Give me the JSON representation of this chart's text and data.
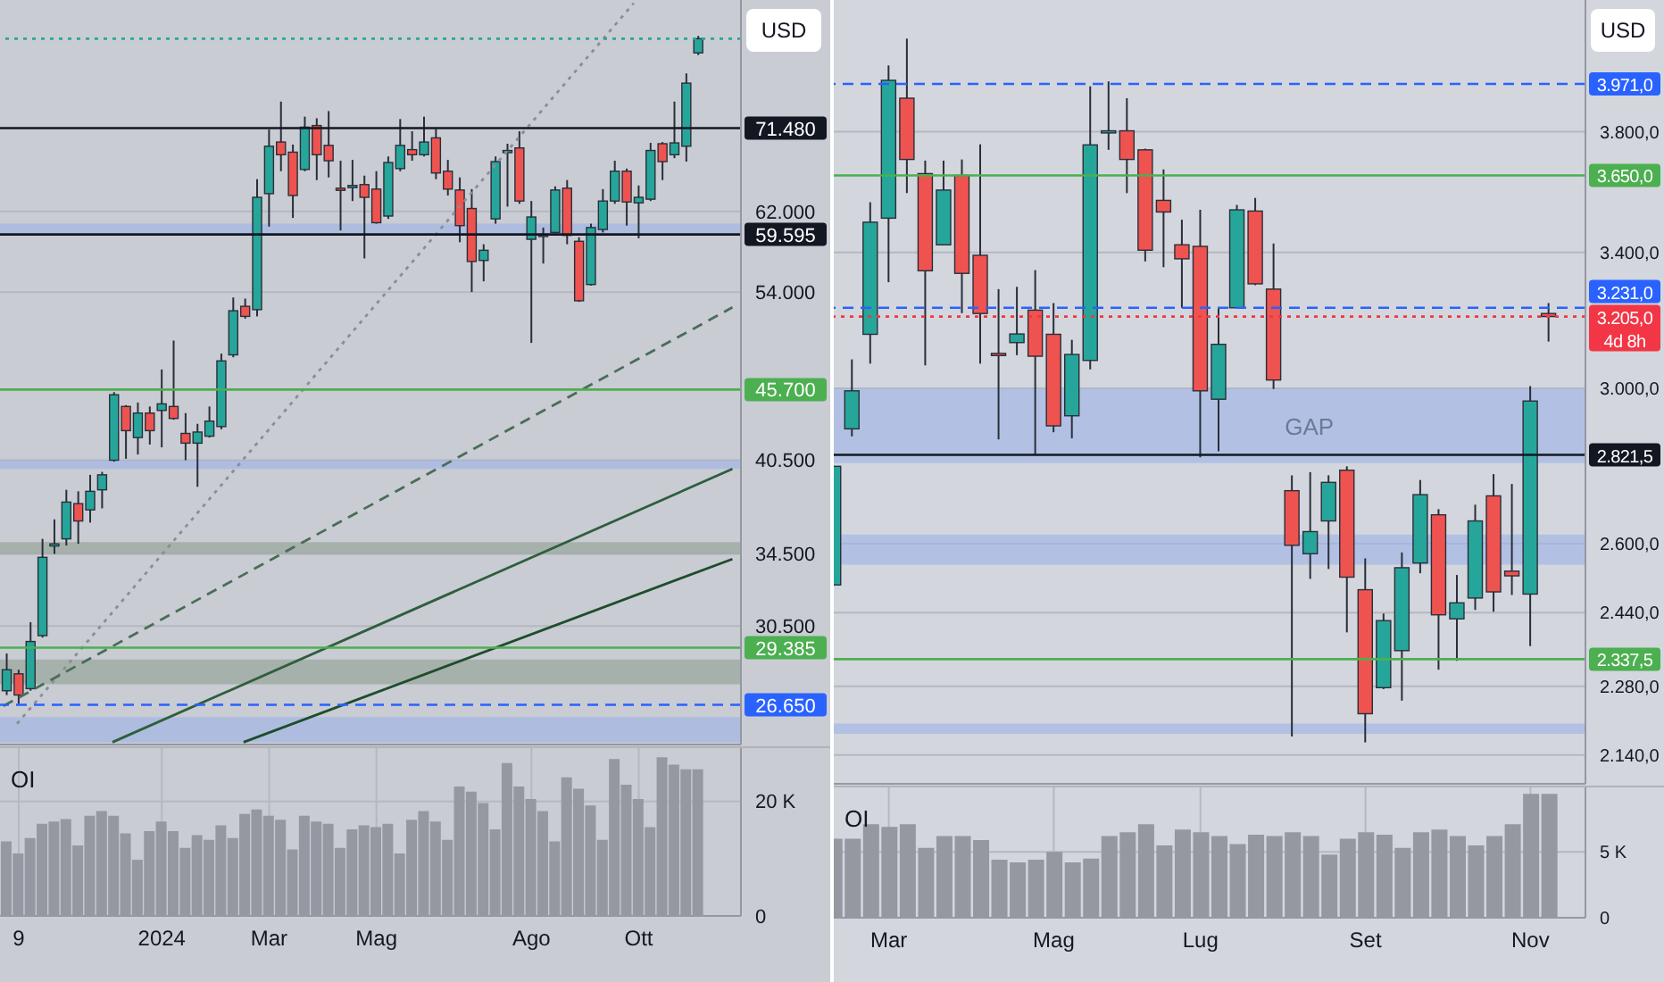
{
  "chart_data": [
    {
      "type": "candlestick",
      "x": [
        "2023-10-02",
        "2023-10-09",
        "2023-10-16",
        "2023-10-23",
        "2023-10-30",
        "2023-11-06",
        "2023-11-13",
        "2023-11-20",
        "2023-11-27",
        "2023-12-04",
        "2023-12-11",
        "2023-12-18",
        "2023-12-25",
        "2024-01-01",
        "2024-01-08",
        "2024-01-15",
        "2024-01-22",
        "2024-01-29",
        "2024-02-05",
        "2024-02-12",
        "2024-02-19",
        "2024-02-26",
        "2024-03-04",
        "2024-03-11",
        "2024-03-18",
        "2024-03-25",
        "2024-04-01",
        "2024-04-08",
        "2024-04-15",
        "2024-04-22",
        "2024-04-29",
        "2024-05-06",
        "2024-05-13",
        "2024-05-20",
        "2024-05-27",
        "2024-06-03",
        "2024-06-10",
        "2024-06-17",
        "2024-06-24",
        "2024-07-01",
        "2024-07-08",
        "2024-07-15",
        "2024-07-22",
        "2024-07-29",
        "2024-08-05",
        "2024-08-12",
        "2024-08-19",
        "2024-08-26",
        "2024-09-02",
        "2024-09-09",
        "2024-09-16",
        "2024-09-23",
        "2024-09-30",
        "2024-10-07",
        "2024-10-14",
        "2024-10-21",
        "2024-10-28",
        "2024-11-04",
        "2024-11-11"
      ],
      "ohlc": [
        [
          27300,
          29100,
          27100,
          28300
        ],
        [
          28100,
          28300,
          26700,
          27100
        ],
        [
          27400,
          30700,
          27300,
          29700
        ],
        [
          30000,
          35400,
          29900,
          34300
        ],
        [
          35000,
          36600,
          34500,
          35100
        ],
        [
          35400,
          38500,
          35000,
          37700
        ],
        [
          37600,
          38400,
          35100,
          36500
        ],
        [
          37200,
          39500,
          36400,
          38400
        ],
        [
          38500,
          39700,
          37300,
          39500
        ],
        [
          40500,
          45500,
          40400,
          45300
        ],
        [
          44400,
          44500,
          40600,
          42600
        ],
        [
          42100,
          44700,
          40900,
          43900
        ],
        [
          43900,
          44400,
          41600,
          42600
        ],
        [
          44100,
          47300,
          41400,
          44600
        ],
        [
          44400,
          49700,
          43400,
          43500
        ],
        [
          42400,
          43900,
          40500,
          41700
        ],
        [
          41700,
          43100,
          38700,
          42500
        ],
        [
          42200,
          44400,
          42100,
          43300
        ],
        [
          42900,
          48600,
          42700,
          48000
        ],
        [
          48500,
          53500,
          48300,
          52300
        ],
        [
          52700,
          53400,
          51600,
          51800
        ],
        [
          52400,
          65500,
          51800,
          63500
        ],
        [
          63900,
          71300,
          60400,
          69300
        ],
        [
          69800,
          74800,
          66400,
          68300
        ],
        [
          68600,
          69500,
          61300,
          63700
        ],
        [
          66600,
          72900,
          66400,
          71600
        ],
        [
          71800,
          72700,
          65400,
          68300
        ],
        [
          69400,
          73600,
          65700,
          67600
        ],
        [
          64500,
          67600,
          60000,
          64300
        ],
        [
          64700,
          67700,
          63100,
          64800
        ],
        [
          64900,
          65900,
          57200,
          63500
        ],
        [
          64400,
          66400,
          60700,
          60800
        ],
        [
          61500,
          68100,
          61200,
          67400
        ],
        [
          66700,
          72600,
          66400,
          69400
        ],
        [
          68900,
          71100,
          67600,
          68300
        ],
        [
          68300,
          72900,
          68100,
          69800
        ],
        [
          70300,
          71400,
          65500,
          66200
        ],
        [
          66400,
          67700,
          63700,
          64400
        ],
        [
          64300,
          65700,
          58800,
          60500
        ],
        [
          62300,
          64400,
          54000,
          56900
        ],
        [
          57000,
          58600,
          55000,
          58000
        ],
        [
          61200,
          68100,
          60700,
          67500
        ],
        [
          68600,
          69600,
          62500,
          68800
        ],
        [
          69100,
          71100,
          62800,
          63100
        ],
        [
          59100,
          63100,
          49500,
          61400
        ],
        [
          59400,
          60300,
          56700,
          59600
        ],
        [
          59800,
          64700,
          59700,
          64300
        ],
        [
          64500,
          65400,
          58600,
          59500
        ],
        [
          58900,
          59300,
          53100,
          53200
        ],
        [
          54700,
          60700,
          54600,
          60300
        ],
        [
          60100,
          64400,
          59800,
          63100
        ],
        [
          63100,
          67600,
          62800,
          66400
        ],
        [
          66400,
          66700,
          60500,
          63000
        ],
        [
          62900,
          64800,
          59200,
          63500
        ],
        [
          63300,
          69700,
          63100,
          68800
        ],
        [
          69600,
          69800,
          65400,
          67500
        ],
        [
          68300,
          74800,
          67900,
          69700
        ],
        [
          69300,
          78500,
          67500,
          77200
        ],
        [
          81300,
          83700,
          81000,
          83300
        ]
      ],
      "colors": [
        "#26a69a",
        "#ef5350",
        "#26a69a",
        "#26a69a",
        "#26a69a",
        "#26a69a",
        "#ef5350",
        "#26a69a",
        "#26a69a",
        "#26a69a",
        "#ef5350",
        "#26a69a",
        "#ef5350",
        "#26a69a",
        "#ef5350",
        "#ef5350",
        "#26a69a",
        "#26a69a",
        "#26a69a",
        "#26a69a",
        "#ef5350",
        "#26a69a",
        "#26a69a",
        "#ef5350",
        "#ef5350",
        "#26a69a",
        "#ef5350",
        "#ef5350",
        "#ef5350",
        "#26a69a",
        "#ef5350",
        "#ef5350",
        "#26a69a",
        "#26a69a",
        "#ef5350",
        "#26a69a",
        "#ef5350",
        "#ef5350",
        "#ef5350",
        "#ef5350",
        "#26a69a",
        "#26a69a",
        "#26a69a",
        "#ef5350",
        "#26a69a",
        "#26a69a",
        "#26a69a",
        "#ef5350",
        "#ef5350",
        "#26a69a",
        "#26a69a",
        "#26a69a",
        "#ef5350",
        "#26a69a",
        "#26a69a",
        "#ef5350",
        "#26a69a",
        "#26a69a",
        "#26a69a"
      ],
      "series": [
        {
          "type": "line",
          "x": [
            "2023-10-08",
            "2024-10-04"
          ],
          "values": [
            25800,
            88500
          ],
          "color": "#8a8d96",
          "line_style": "dotted"
        },
        {
          "type": "line",
          "x": [
            "2023-09-30",
            "2024-12-01"
          ],
          "values": [
            26600,
            52600
          ],
          "color": "#4a6d58",
          "line_style": "dashed"
        },
        {
          "type": "line",
          "x": [
            "2023-12-03",
            "2024-12-01"
          ],
          "values": [
            25000,
            39900
          ],
          "color": "#2e5e3e",
          "line_style": "solid"
        },
        {
          "type": "line",
          "x": [
            "2024-02-18",
            "2024-12-01"
          ],
          "values": [
            25000,
            34200
          ],
          "color": "#1e4d2b",
          "line_style": "solid"
        }
      ],
      "xlim": [
        "2023-09-28",
        "2024-12-06"
      ],
      "xticks": [
        {
          "value": "2023-10-09",
          "label": null
        },
        {
          "value": "2024-01-01",
          "label": null
        },
        {
          "value": "2024-03-04",
          "label": null
        },
        {
          "value": "2024-05-06",
          "label": null
        },
        {
          "value": "2024-08-05",
          "label": null
        },
        {
          "value": "2024-10-07",
          "label": null
        }
      ],
      "ylim": [
        24900,
        89000
      ],
      "yticks": [
        {
          "value": 30500,
          "label": "30.500"
        },
        {
          "value": 34500,
          "label": "34.500"
        },
        {
          "value": 40500,
          "label": "40.500"
        },
        {
          "value": 54000,
          "label": "54.000"
        },
        {
          "value": 62000,
          "label": "62.000"
        }
      ],
      "log": true,
      "grid": true,
      "tick_labels": "y",
      "ref_lines": [
        {
          "axis": "y",
          "value": 83300,
          "color": "#26a69a",
          "line_style": "dotted"
        },
        {
          "axis": "y",
          "value": 71480,
          "label": "71.480",
          "color": "#131722"
        },
        {
          "axis": "y",
          "value": 59595,
          "label": "59.595",
          "color": "#131722"
        },
        {
          "axis": "y",
          "value": 45700,
          "label": "45.700",
          "color": "#4caf50"
        },
        {
          "axis": "y",
          "value": 29385,
          "label": "29.385",
          "color": "#4caf50"
        },
        {
          "axis": "y",
          "value": 26650,
          "label": "26.650",
          "color": "#2962ff",
          "line_style": "dashed"
        }
      ],
      "bands": [
        {
          "axis": "y",
          "from": 25000,
          "to": 26100,
          "color": "#9db3e8"
        },
        {
          "axis": "y",
          "from": 27600,
          "to": 28800,
          "color": "#8f9e92"
        },
        {
          "axis": "y",
          "from": 34500,
          "to": 35200,
          "color": "#8f9e92"
        },
        {
          "axis": "y",
          "from": 39900,
          "to": 40500,
          "color": "#9db3e8"
        },
        {
          "axis": "y",
          "from": 59600,
          "to": 60700,
          "color": "#9db3e8"
        }
      ],
      "annotations": [
        "USD"
      ]
    },
    {
      "type": "bar",
      "title": "OI",
      "x": [
        "2023-10-02",
        "2023-10-09",
        "2023-10-16",
        "2023-10-23",
        "2023-10-30",
        "2023-11-06",
        "2023-11-13",
        "2023-11-20",
        "2023-11-27",
        "2023-12-04",
        "2023-12-11",
        "2023-12-18",
        "2023-12-25",
        "2024-01-01",
        "2024-01-08",
        "2024-01-15",
        "2024-01-22",
        "2024-01-29",
        "2024-02-05",
        "2024-02-12",
        "2024-02-19",
        "2024-02-26",
        "2024-03-04",
        "2024-03-11",
        "2024-03-18",
        "2024-03-25",
        "2024-04-01",
        "2024-04-08",
        "2024-04-15",
        "2024-04-22",
        "2024-04-29",
        "2024-05-06",
        "2024-05-13",
        "2024-05-20",
        "2024-05-27",
        "2024-06-03",
        "2024-06-10",
        "2024-06-17",
        "2024-06-24",
        "2024-07-01",
        "2024-07-08",
        "2024-07-15",
        "2024-07-22",
        "2024-07-29",
        "2024-08-05",
        "2024-08-12",
        "2024-08-19",
        "2024-08-26",
        "2024-09-02",
        "2024-09-09",
        "2024-09-16",
        "2024-09-23",
        "2024-09-30",
        "2024-10-07",
        "2024-10-14",
        "2024-10-21",
        "2024-10-28",
        "2024-11-04",
        "2024-11-11"
      ],
      "values": [
        13000,
        10900,
        13600,
        16100,
        16500,
        16900,
        12300,
        17500,
        18300,
        17500,
        14400,
        9800,
        14800,
        16500,
        14800,
        11900,
        14100,
        13300,
        15800,
        13600,
        17800,
        18600,
        17500,
        16800,
        11600,
        17500,
        16500,
        16100,
        11900,
        15100,
        15800,
        15500,
        16100,
        10900,
        16800,
        18300,
        16500,
        13300,
        22600,
        21700,
        19700,
        15100,
        26700,
        22600,
        20400,
        18300,
        13000,
        24200,
        22200,
        19300,
        13300,
        27400,
        22900,
        20400,
        15500,
        27700,
        26400,
        25600,
        25600
      ],
      "color": "#9598a1",
      "xlim": [
        "2023-09-28",
        "2024-12-06"
      ],
      "xticks": [
        {
          "value": "2023-10-09",
          "label": "9"
        },
        {
          "value": "2024-01-01",
          "label": "2024"
        },
        {
          "value": "2024-03-04",
          "label": "Mar"
        },
        {
          "value": "2024-05-06",
          "label": "Mag"
        },
        {
          "value": "2024-08-05",
          "label": "Ago"
        },
        {
          "value": "2024-10-07",
          "label": "Ott"
        }
      ],
      "ylim": [
        0,
        29300
      ],
      "yticks": [
        0,
        {
          "value": 20000,
          "label": "20 K"
        }
      ],
      "grid": true
    },
    {
      "type": "candlestick",
      "x": [
        "2024-02-12",
        "2024-02-19",
        "2024-02-26",
        "2024-03-04",
        "2024-03-11",
        "2024-03-18",
        "2024-03-25",
        "2024-04-01",
        "2024-04-08",
        "2024-04-15",
        "2024-04-22",
        "2024-04-29",
        "2024-05-06",
        "2024-05-13",
        "2024-05-20",
        "2024-05-27",
        "2024-06-03",
        "2024-06-10",
        "2024-06-17",
        "2024-06-24",
        "2024-07-01",
        "2024-07-08",
        "2024-07-15",
        "2024-07-22",
        "2024-07-29",
        "2024-08-05",
        "2024-08-12",
        "2024-08-19",
        "2024-08-26",
        "2024-09-02",
        "2024-09-09",
        "2024-09-16",
        "2024-09-23",
        "2024-09-30",
        "2024-10-07",
        "2024-10-14",
        "2024-10-21",
        "2024-10-28",
        "2024-11-04",
        "2024-11-11"
      ],
      "ohlc": [
        [
          2503,
          2792,
          2503,
          2792
        ],
        [
          2890,
          3081,
          2870,
          2993
        ],
        [
          3153,
          3561,
          3069,
          3496
        ],
        [
          3509,
          4039,
          3308,
          3984
        ],
        [
          3919,
          4140,
          3591,
          3704
        ],
        [
          3656,
          3700,
          3064,
          3343
        ],
        [
          3424,
          3700,
          3424,
          3601
        ],
        [
          3650,
          3704,
          3215,
          3335
        ],
        [
          3391,
          3756,
          3069,
          3214
        ],
        [
          3098,
          3287,
          2862,
          3095
        ],
        [
          3129,
          3294,
          3093,
          3154
        ],
        [
          3224,
          3345,
          2823,
          3090
        ],
        [
          3153,
          3245,
          2881,
          2898
        ],
        [
          2925,
          3137,
          2865,
          3095
        ],
        [
          3078,
          3962,
          3053,
          3754
        ],
        [
          3799,
          3980,
          3737,
          3803
        ],
        [
          3803,
          3919,
          3591,
          3704
        ],
        [
          3737,
          3741,
          3372,
          3407
        ],
        [
          3567,
          3670,
          3354,
          3529
        ],
        [
          3424,
          3504,
          3231,
          3380
        ],
        [
          3419,
          3536,
          2815,
          2993
        ],
        [
          2970,
          3228,
          2831,
          3124
        ],
        [
          3231,
          3552,
          3228,
          3536
        ],
        [
          3532,
          3575,
          3299,
          3303
        ],
        [
          3287,
          3428,
          2998,
          3023
        ],
        [
          2730,
          2769,
          2177,
          2596
        ],
        [
          2576,
          2777,
          2517,
          2629
        ],
        [
          2655,
          2769,
          2540,
          2751
        ],
        [
          2782,
          2792,
          2396,
          2521
        ],
        [
          2492,
          2565,
          2165,
          2223
        ],
        [
          2277,
          2438,
          2274,
          2422
        ],
        [
          2356,
          2579,
          2250,
          2543
        ],
        [
          2554,
          2757,
          2530,
          2720
        ],
        [
          2670,
          2684,
          2315,
          2435
        ],
        [
          2426,
          2526,
          2334,
          2462
        ],
        [
          2473,
          2695,
          2446,
          2655
        ],
        [
          2717,
          2772,
          2442,
          2487
        ],
        [
          2535,
          2747,
          2480,
          2524
        ],
        [
          2482,
          3006,
          2366,
          2965
        ],
        [
          3214,
          3245,
          3132,
          3205
        ]
      ],
      "colors": [
        "#26a69a",
        "#26a69a",
        "#26a69a",
        "#26a69a",
        "#ef5350",
        "#ef5350",
        "#26a69a",
        "#ef5350",
        "#ef5350",
        "#ef5350",
        "#26a69a",
        "#ef5350",
        "#ef5350",
        "#26a69a",
        "#26a69a",
        "#26a69a",
        "#ef5350",
        "#ef5350",
        "#ef5350",
        "#ef5350",
        "#ef5350",
        "#26a69a",
        "#26a69a",
        "#ef5350",
        "#ef5350",
        "#ef5350",
        "#26a69a",
        "#26a69a",
        "#ef5350",
        "#ef5350",
        "#26a69a",
        "#26a69a",
        "#26a69a",
        "#ef5350",
        "#26a69a",
        "#26a69a",
        "#ef5350",
        "#ef5350",
        "#26a69a",
        "#ef5350"
      ],
      "xlim": [
        "2024-02-12",
        "2024-11-25"
      ],
      "xticks": [
        {
          "value": "2024-03-04",
          "label": null
        },
        {
          "value": "2024-05-06",
          "label": null
        },
        {
          "value": "2024-07-01",
          "label": null
        },
        {
          "value": "2024-09-02",
          "label": null
        },
        {
          "value": "2024-11-04",
          "label": null
        }
      ],
      "ylim": [
        2084,
        4290
      ],
      "yticks": [
        {
          "value": 2140,
          "label": "2.140,0"
        },
        {
          "value": 2280,
          "label": "2.280,0"
        },
        {
          "value": 2440,
          "label": "2.440,0"
        },
        {
          "value": 2600,
          "label": "2.600,0"
        },
        {
          "value": 3000,
          "label": "3.000,0"
        },
        {
          "value": 3400,
          "label": "3.400,0"
        },
        {
          "value": 3800,
          "label": "3.800,0"
        }
      ],
      "log": true,
      "grid": true,
      "tick_labels": "y",
      "ref_lines": [
        {
          "axis": "y",
          "value": 3971,
          "label": "3.971,0",
          "color": "#2962ff",
          "line_style": "dashed"
        },
        {
          "axis": "y",
          "value": 3650,
          "label": "3.650,0",
          "color": "#4caf50"
        },
        {
          "axis": "y",
          "value": 3231,
          "label": "3.231,0",
          "color": "#2962ff",
          "line_style": "dashed"
        },
        {
          "axis": "y",
          "value": 3205,
          "label": "3.205,0\n4d 8h",
          "color": "#f23645",
          "line_style": "dotted"
        },
        {
          "axis": "y",
          "value": 2821.5,
          "label": "2.821,5",
          "color": "#131722"
        },
        {
          "axis": "y",
          "value": 2337.5,
          "label": "2.337,5",
          "color": "#4caf50"
        }
      ],
      "bands": [
        {
          "axis": "y",
          "from": 2182,
          "to": 2203,
          "color": "#9db3e8"
        },
        {
          "axis": "y",
          "from": 2550,
          "to": 2622,
          "color": "#9db3e8"
        },
        {
          "axis": "y",
          "from": 2800,
          "to": 3000,
          "color": "#9db3e8",
          "label": "GAP"
        }
      ],
      "annotations": [
        "USD"
      ]
    },
    {
      "type": "bar",
      "title": "OI",
      "x": [
        "2024-02-12",
        "2024-02-19",
        "2024-02-26",
        "2024-03-04",
        "2024-03-11",
        "2024-03-18",
        "2024-03-25",
        "2024-04-01",
        "2024-04-08",
        "2024-04-15",
        "2024-04-22",
        "2024-04-29",
        "2024-05-06",
        "2024-05-13",
        "2024-05-20",
        "2024-05-27",
        "2024-06-03",
        "2024-06-10",
        "2024-06-17",
        "2024-06-24",
        "2024-07-01",
        "2024-07-08",
        "2024-07-15",
        "2024-07-22",
        "2024-07-29",
        "2024-08-05",
        "2024-08-12",
        "2024-08-19",
        "2024-08-26",
        "2024-09-02",
        "2024-09-09",
        "2024-09-16",
        "2024-09-23",
        "2024-09-30",
        "2024-10-07",
        "2024-10-14",
        "2024-10-21",
        "2024-10-28",
        "2024-11-04",
        "2024-11-11"
      ],
      "values": [
        6000,
        6000,
        7100,
        6900,
        7100,
        5300,
        6200,
        6200,
        5900,
        4400,
        4200,
        4400,
        5000,
        4200,
        4500,
        6200,
        6500,
        7100,
        5500,
        6700,
        6500,
        6200,
        5600,
        6300,
        6200,
        6500,
        6200,
        4800,
        6000,
        6500,
        6300,
        5300,
        6500,
        6700,
        6200,
        5500,
        6200,
        7100,
        9400,
        9400
      ],
      "color": "#9598a1",
      "xlim": [
        "2024-02-12",
        "2024-11-25"
      ],
      "xticks": [
        {
          "value": "2024-03-04",
          "label": "Mar"
        },
        {
          "value": "2024-05-06",
          "label": "Mag"
        },
        {
          "value": "2024-07-01",
          "label": "Lug"
        },
        {
          "value": "2024-09-02",
          "label": "Set"
        },
        {
          "value": "2024-11-04",
          "label": "Nov"
        }
      ],
      "ylim": [
        0,
        9900
      ],
      "yticks": [
        0,
        {
          "value": 5000,
          "label": "5 K"
        }
      ],
      "grid": true
    }
  ]
}
